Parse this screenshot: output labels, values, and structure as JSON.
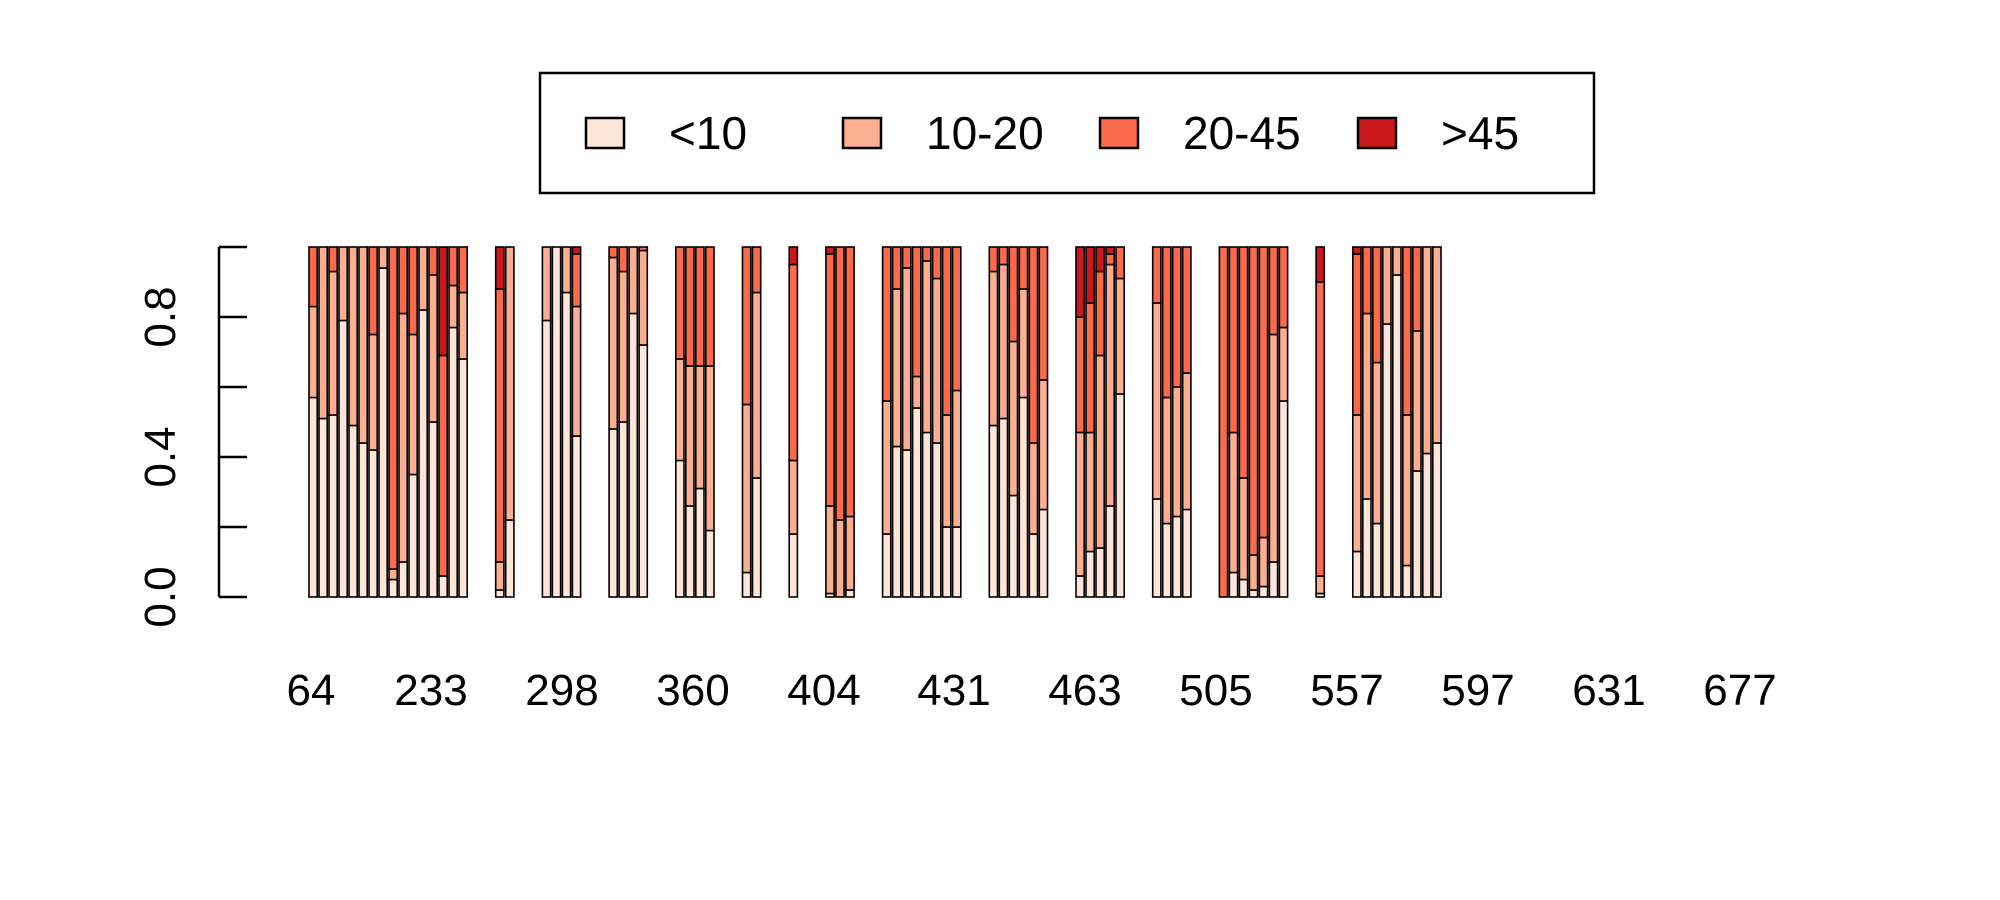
{
  "chart_data": {
    "type": "bar",
    "stacked": true,
    "legend_position": "top",
    "ylim": [
      0,
      1
    ],
    "y_ticks": [
      "0.0",
      "0.4",
      "0.8"
    ],
    "y_tick_values": [
      0,
      0.2,
      0.4,
      0.6,
      0.8,
      1.0
    ],
    "x_tick_labels": [
      "64",
      "233",
      "298",
      "360",
      "404",
      "431",
      "463",
      "505",
      "557",
      "597",
      "631",
      "677"
    ],
    "legend": [
      {
        "name": "<10",
        "color": "#FEE5D9"
      },
      {
        "name": "10-20",
        "color": "#FCAE91"
      },
      {
        "name": "20-45",
        "color": "#FB6A4A"
      },
      {
        "name": ">45",
        "color": "#CB181D"
      }
    ],
    "groups": [
      {
        "bars": [
          [
            0.57,
            0.26,
            0.17,
            0
          ],
          [
            0.51,
            0.49,
            0,
            0
          ],
          [
            0.52,
            0.41,
            0.07,
            0
          ],
          [
            0.79,
            0.21,
            0,
            0
          ],
          [
            0.49,
            0.51,
            0,
            0
          ],
          [
            0.44,
            0.56,
            0,
            0
          ],
          [
            0.42,
            0.33,
            0.25,
            0
          ],
          [
            0.94,
            0.06,
            0,
            0
          ],
          [
            0.05,
            0.03,
            0.92,
            0
          ],
          [
            0.1,
            0.71,
            0.19,
            0
          ],
          [
            0.35,
            0.4,
            0.25,
            0
          ],
          [
            0.82,
            0.18,
            0,
            0
          ],
          [
            0.5,
            0.42,
            0.08,
            0
          ],
          [
            0.06,
            0,
            0.63,
            0.31
          ],
          [
            0.77,
            0.12,
            0.11,
            0
          ],
          [
            0.68,
            0.19,
            0.13,
            0
          ]
        ]
      },
      {
        "bars": [
          [
            0.02,
            0.08,
            0.78,
            0.12
          ],
          [
            0.22,
            0.78,
            0,
            0
          ]
        ]
      },
      {
        "bars": [
          [
            0.79,
            0.21,
            0,
            0
          ],
          [
            1.0,
            0,
            0,
            0
          ],
          [
            0.87,
            0.13,
            0,
            0
          ],
          [
            0.46,
            0.37,
            0.15,
            0.02
          ]
        ]
      },
      {
        "bars": [
          [
            0.48,
            0.49,
            0.03,
            0
          ],
          [
            0.5,
            0.43,
            0.07,
            0
          ],
          [
            0.81,
            0.19,
            0,
            0
          ],
          [
            0.72,
            0.27,
            0.01,
            0
          ]
        ]
      },
      {
        "bars": [
          [
            0.39,
            0.29,
            0.32,
            0
          ],
          [
            0.26,
            0.4,
            0.34,
            0
          ],
          [
            0.31,
            0.35,
            0.34,
            0
          ],
          [
            0.19,
            0.47,
            0.34,
            0
          ]
        ]
      },
      {
        "bars": [
          [
            0.07,
            0.48,
            0.45,
            0
          ],
          [
            0.34,
            0.53,
            0.13,
            0
          ]
        ]
      },
      {
        "bars": [
          [
            0.18,
            0.21,
            0.56,
            0.05
          ]
        ]
      },
      {
        "bars": [
          [
            0.01,
            0.25,
            0.72,
            0.02
          ],
          [
            0,
            0.22,
            0.78,
            0
          ],
          [
            0.02,
            0.21,
            0.77,
            0
          ]
        ]
      },
      {
        "bars": [
          [
            0.18,
            0.38,
            0.44,
            0
          ],
          [
            0.43,
            0.45,
            0.12,
            0
          ],
          [
            0.42,
            0.52,
            0.06,
            0
          ],
          [
            0.54,
            0.09,
            0.37,
            0
          ],
          [
            0.47,
            0.49,
            0.04,
            0
          ],
          [
            0.44,
            0.47,
            0.09,
            0
          ],
          [
            0.2,
            0.32,
            0.48,
            0
          ],
          [
            0.2,
            0.39,
            0.41,
            0
          ]
        ]
      },
      {
        "bars": [
          [
            0.49,
            0.44,
            0.07,
            0
          ],
          [
            0.51,
            0.44,
            0.05,
            0
          ],
          [
            0.29,
            0.44,
            0.27,
            0
          ],
          [
            0.57,
            0.31,
            0.12,
            0
          ],
          [
            0.18,
            0.26,
            0.56,
            0
          ],
          [
            0.25,
            0.37,
            0.38,
            0
          ]
        ]
      },
      {
        "bars": [
          [
            0.06,
            0.41,
            0.33,
            0.2
          ],
          [
            0.13,
            0.34,
            0.37,
            0.16
          ],
          [
            0.14,
            0.55,
            0.24,
            0.07
          ],
          [
            0.26,
            0.69,
            0.03,
            0.02
          ],
          [
            0.58,
            0.33,
            0.09,
            0
          ]
        ]
      },
      {
        "bars": [
          [
            0.28,
            0.56,
            0.16,
            0
          ],
          [
            0.21,
            0.36,
            0.43,
            0
          ],
          [
            0.23,
            0.37,
            0.4,
            0
          ],
          [
            0.25,
            0.39,
            0.36,
            0
          ]
        ]
      },
      {
        "bars": [
          [
            0,
            0,
            1.0,
            0
          ],
          [
            0.07,
            0.4,
            0.53,
            0
          ],
          [
            0.05,
            0.29,
            0.66,
            0
          ],
          [
            0.02,
            0.1,
            0.88,
            0
          ],
          [
            0.03,
            0.14,
            0.83,
            0
          ],
          [
            0.1,
            0.65,
            0.25,
            0
          ],
          [
            0.56,
            0.21,
            0.23,
            0
          ]
        ]
      },
      {
        "bars": [
          [
            0.01,
            0.05,
            0.84,
            0.1
          ]
        ]
      },
      {
        "bars": [
          [
            0.13,
            0.39,
            0.46,
            0.02
          ],
          [
            0.28,
            0.53,
            0.19,
            0
          ],
          [
            0.21,
            0.46,
            0.33,
            0
          ],
          [
            0.78,
            0.22,
            0,
            0
          ],
          [
            0.92,
            0.08,
            0,
            0
          ],
          [
            0.09,
            0.43,
            0.48,
            0
          ],
          [
            0.36,
            0.4,
            0.24,
            0
          ],
          [
            0.41,
            0.59,
            0,
            0
          ],
          [
            0.44,
            0.56,
            0,
            0
          ]
        ]
      }
    ]
  }
}
